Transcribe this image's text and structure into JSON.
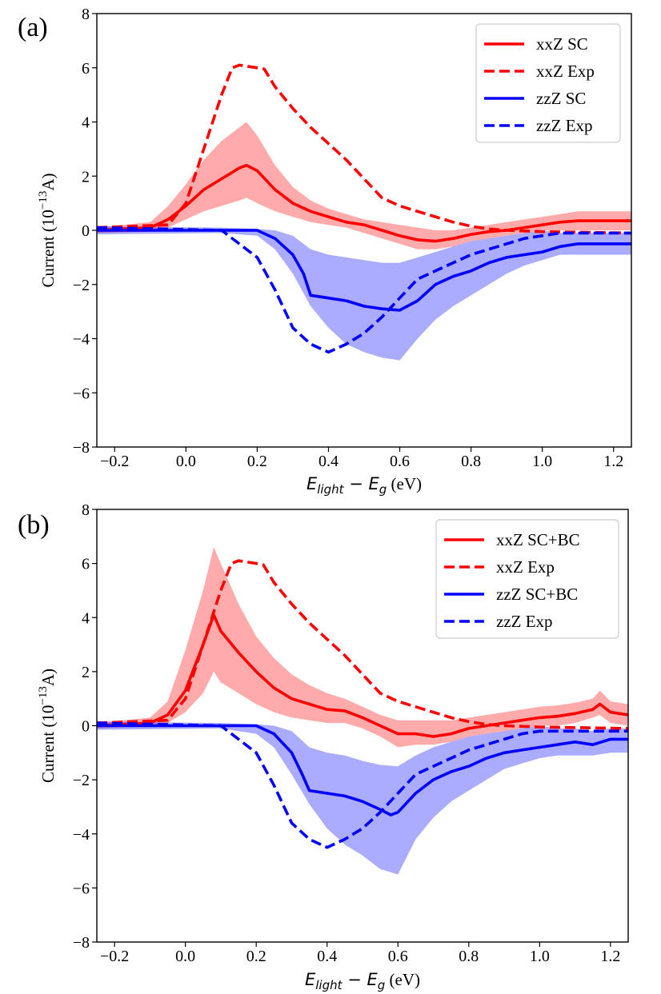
{
  "figure": {
    "xlabel_main": "E",
    "xlabel_sub1": "light",
    "xlabel_mid": " − E",
    "xlabel_sub2": "g",
    "xlabel_unit": " (eV)",
    "ylabel_prefix": "Current (10",
    "ylabel_exp": "−13",
    "ylabel_suffix": "A)"
  },
  "chart_data": [
    {
      "type": "line",
      "panel_label": "(a)",
      "xlim": [
        -0.25,
        1.25
      ],
      "ylim": [
        -8,
        8
      ],
      "xticks": [
        -0.2,
        0.0,
        0.2,
        0.4,
        0.6,
        0.8,
        1.0,
        1.2
      ],
      "yticks": [
        -8,
        -6,
        -4,
        -2,
        0,
        2,
        4,
        6,
        8
      ],
      "xtick_labels": [
        "−0.2",
        "0.0",
        "0.2",
        "0.4",
        "0.6",
        "0.8",
        "1.0",
        "1.2"
      ],
      "ytick_labels": [
        "−8",
        "−6",
        "−4",
        "−2",
        "0",
        "2",
        "4",
        "6",
        "8"
      ],
      "legend_position": "top-right",
      "series": [
        {
          "name": "xxZ SC",
          "color": "#ff0000",
          "dash": "solid",
          "x": [
            -0.25,
            -0.1,
            -0.05,
            0.0,
            0.05,
            0.1,
            0.15,
            0.17,
            0.2,
            0.25,
            0.3,
            0.35,
            0.4,
            0.45,
            0.5,
            0.55,
            0.6,
            0.65,
            0.7,
            0.75,
            0.8,
            0.85,
            0.9,
            0.95,
            1.0,
            1.05,
            1.1,
            1.25
          ],
          "y": [
            0.0,
            0.1,
            0.4,
            0.9,
            1.5,
            1.9,
            2.3,
            2.4,
            2.2,
            1.5,
            1.0,
            0.7,
            0.5,
            0.3,
            0.2,
            0.0,
            -0.2,
            -0.35,
            -0.4,
            -0.3,
            -0.15,
            -0.05,
            0.0,
            0.1,
            0.2,
            0.3,
            0.35,
            0.35
          ],
          "band_upper": [
            0.1,
            0.3,
            0.9,
            1.7,
            2.6,
            3.3,
            3.8,
            4.0,
            3.5,
            2.4,
            1.6,
            1.1,
            0.8,
            0.6,
            0.4,
            0.3,
            0.2,
            0.1,
            0.0,
            0.0,
            0.1,
            0.2,
            0.3,
            0.4,
            0.5,
            0.6,
            0.7,
            0.7
          ],
          "band_lower": [
            -0.1,
            -0.05,
            0.1,
            0.4,
            0.7,
            0.9,
            1.1,
            1.2,
            1.0,
            0.7,
            0.5,
            0.3,
            0.2,
            0.1,
            -0.1,
            -0.3,
            -0.5,
            -0.7,
            -0.7,
            -0.6,
            -0.4,
            -0.3,
            -0.2,
            -0.1,
            0.0,
            0.0,
            0.0,
            0.0
          ]
        },
        {
          "name": "xxZ Exp",
          "color": "#ff0000",
          "dash": "dashed",
          "x": [
            -0.25,
            -0.05,
            0.0,
            0.05,
            0.1,
            0.13,
            0.15,
            0.2,
            0.22,
            0.25,
            0.3,
            0.35,
            0.4,
            0.45,
            0.5,
            0.55,
            0.6,
            0.65,
            0.7,
            0.75,
            0.8,
            0.85,
            0.9,
            1.0,
            1.25
          ],
          "y": [
            0.1,
            0.2,
            1.0,
            3.0,
            5.0,
            6.0,
            6.1,
            6.0,
            5.95,
            5.3,
            4.5,
            3.8,
            3.2,
            2.6,
            1.9,
            1.2,
            0.9,
            0.7,
            0.5,
            0.3,
            0.15,
            0.05,
            0.0,
            -0.05,
            -0.1
          ]
        },
        {
          "name": "zzZ SC",
          "color": "#0000ff",
          "dash": "solid",
          "x": [
            -0.25,
            0.1,
            0.2,
            0.25,
            0.3,
            0.33,
            0.35,
            0.4,
            0.45,
            0.5,
            0.55,
            0.6,
            0.65,
            0.7,
            0.75,
            0.8,
            0.85,
            0.9,
            0.95,
            1.0,
            1.05,
            1.1,
            1.25
          ],
          "y": [
            0.0,
            0.0,
            0.0,
            -0.3,
            -0.9,
            -1.6,
            -2.4,
            -2.5,
            -2.6,
            -2.8,
            -2.9,
            -2.95,
            -2.6,
            -2.0,
            -1.7,
            -1.5,
            -1.2,
            -1.0,
            -0.9,
            -0.8,
            -0.6,
            -0.5,
            -0.5
          ]
        },
        {
          "name": "zzZ Exp",
          "color": "#0000ff",
          "dash": "dashed",
          "x": [
            -0.25,
            0.1,
            0.15,
            0.2,
            0.25,
            0.3,
            0.35,
            0.4,
            0.45,
            0.5,
            0.55,
            0.6,
            0.65,
            0.7,
            0.75,
            0.8,
            0.85,
            0.9,
            0.95,
            1.0,
            1.05,
            1.25
          ],
          "y": [
            0.1,
            0.0,
            -0.5,
            -1.0,
            -2.2,
            -3.6,
            -4.2,
            -4.5,
            -4.2,
            -3.8,
            -3.2,
            -2.5,
            -1.8,
            -1.5,
            -1.2,
            -0.9,
            -0.7,
            -0.5,
            -0.3,
            -0.2,
            -0.1,
            -0.1
          ]
        },
        {
          "name": "zzZ SC band",
          "color": "#0000ff",
          "band_only": true,
          "x": [
            -0.25,
            0.1,
            0.2,
            0.25,
            0.3,
            0.35,
            0.4,
            0.45,
            0.5,
            0.55,
            0.6,
            0.65,
            0.7,
            0.75,
            0.8,
            0.85,
            0.9,
            0.95,
            1.0,
            1.05,
            1.1,
            1.25
          ],
          "band_upper": [
            0.15,
            0.1,
            0.05,
            0.0,
            -0.2,
            -0.7,
            -0.9,
            -1.0,
            -1.1,
            -1.2,
            -1.2,
            -1.0,
            -0.8,
            -0.6,
            -0.4,
            -0.3,
            -0.2,
            -0.1,
            0.0,
            -0.1,
            -0.1,
            -0.1
          ],
          "band_lower": [
            -0.15,
            -0.1,
            -0.2,
            -0.7,
            -1.6,
            -2.8,
            -3.6,
            -4.2,
            -4.5,
            -4.7,
            -4.8,
            -4.0,
            -3.3,
            -2.8,
            -2.4,
            -2.0,
            -1.6,
            -1.3,
            -1.1,
            -0.9,
            -0.9,
            -0.9
          ]
        }
      ]
    },
    {
      "type": "line",
      "panel_label": "(b)",
      "xlim": [
        -0.25,
        1.25
      ],
      "ylim": [
        -8,
        8
      ],
      "xticks": [
        -0.2,
        0.0,
        0.2,
        0.4,
        0.6,
        0.8,
        1.0,
        1.2
      ],
      "yticks": [
        -8,
        -6,
        -4,
        -2,
        0,
        2,
        4,
        6,
        8
      ],
      "xtick_labels": [
        "−0.2",
        "0.0",
        "0.2",
        "0.4",
        "0.6",
        "0.8",
        "1.0",
        "1.2"
      ],
      "ytick_labels": [
        "−8",
        "−6",
        "−4",
        "−2",
        "0",
        "2",
        "4",
        "6",
        "8"
      ],
      "legend_position": "top-right",
      "series": [
        {
          "name": "xxZ SC+BC",
          "color": "#ff0000",
          "dash": "solid",
          "x": [
            -0.25,
            -0.1,
            -0.05,
            0.0,
            0.05,
            0.08,
            0.1,
            0.15,
            0.2,
            0.25,
            0.3,
            0.35,
            0.4,
            0.45,
            0.5,
            0.55,
            0.6,
            0.65,
            0.7,
            0.75,
            0.8,
            0.85,
            0.9,
            0.95,
            1.0,
            1.05,
            1.1,
            1.15,
            1.17,
            1.2,
            1.25
          ],
          "y": [
            0.0,
            0.1,
            0.4,
            1.3,
            3.0,
            4.1,
            3.5,
            2.7,
            2.0,
            1.4,
            1.0,
            0.8,
            0.6,
            0.55,
            0.3,
            0.0,
            -0.3,
            -0.3,
            -0.4,
            -0.3,
            -0.1,
            0.0,
            0.1,
            0.2,
            0.3,
            0.35,
            0.45,
            0.6,
            0.8,
            0.5,
            0.4
          ]
        },
        {
          "name": "xxZ Exp",
          "color": "#ff0000",
          "dash": "dashed",
          "x": [
            -0.25,
            -0.05,
            0.0,
            0.05,
            0.1,
            0.13,
            0.15,
            0.2,
            0.22,
            0.25,
            0.3,
            0.35,
            0.4,
            0.45,
            0.5,
            0.55,
            0.6,
            0.65,
            0.7,
            0.75,
            0.8,
            0.85,
            0.9,
            1.0,
            1.25
          ],
          "y": [
            0.1,
            0.2,
            1.0,
            3.0,
            5.0,
            6.0,
            6.1,
            6.0,
            5.95,
            5.3,
            4.5,
            3.8,
            3.2,
            2.6,
            1.9,
            1.2,
            0.9,
            0.7,
            0.5,
            0.3,
            0.15,
            0.05,
            0.0,
            -0.05,
            -0.1
          ]
        },
        {
          "name": "zzZ SC+BC",
          "color": "#0000ff",
          "dash": "solid",
          "x": [
            -0.25,
            0.1,
            0.2,
            0.25,
            0.3,
            0.33,
            0.35,
            0.4,
            0.45,
            0.5,
            0.55,
            0.58,
            0.6,
            0.65,
            0.7,
            0.75,
            0.8,
            0.85,
            0.9,
            0.95,
            1.0,
            1.05,
            1.1,
            1.15,
            1.2,
            1.25
          ],
          "y": [
            0.0,
            0.0,
            0.0,
            -0.3,
            -1.0,
            -1.8,
            -2.4,
            -2.5,
            -2.6,
            -2.8,
            -3.1,
            -3.3,
            -3.2,
            -2.5,
            -2.0,
            -1.7,
            -1.5,
            -1.2,
            -1.0,
            -0.9,
            -0.8,
            -0.7,
            -0.6,
            -0.7,
            -0.5,
            -0.5
          ]
        },
        {
          "name": "zzZ Exp",
          "color": "#0000ff",
          "dash": "dashed",
          "x": [
            -0.25,
            0.1,
            0.15,
            0.2,
            0.25,
            0.3,
            0.35,
            0.4,
            0.45,
            0.5,
            0.55,
            0.6,
            0.65,
            0.7,
            0.75,
            0.8,
            0.85,
            0.9,
            0.95,
            1.0,
            1.05,
            1.25
          ],
          "y": [
            0.1,
            0.0,
            -0.5,
            -1.0,
            -2.2,
            -3.6,
            -4.2,
            -4.5,
            -4.2,
            -3.8,
            -3.2,
            -2.5,
            -1.8,
            -1.5,
            -1.2,
            -0.9,
            -0.7,
            -0.5,
            -0.3,
            -0.2,
            -0.2,
            -0.2
          ]
        },
        {
          "name": "xxZ SC+BC band",
          "color": "#ff0000",
          "band_only": true,
          "x": [
            -0.25,
            -0.1,
            -0.05,
            0.0,
            0.05,
            0.08,
            0.1,
            0.15,
            0.2,
            0.25,
            0.3,
            0.35,
            0.4,
            0.45,
            0.5,
            0.55,
            0.6,
            0.65,
            0.7,
            0.75,
            0.8,
            0.85,
            0.9,
            0.95,
            1.0,
            1.05,
            1.1,
            1.15,
            1.17,
            1.2,
            1.25
          ],
          "band_upper": [
            0.1,
            0.3,
            0.9,
            2.8,
            5.0,
            6.6,
            6.0,
            4.5,
            3.3,
            2.5,
            1.9,
            1.5,
            1.2,
            1.0,
            0.7,
            0.4,
            0.2,
            0.2,
            0.2,
            0.2,
            0.3,
            0.4,
            0.5,
            0.6,
            0.7,
            0.75,
            0.85,
            1.0,
            1.3,
            0.9,
            0.8
          ],
          "band_lower": [
            -0.1,
            0.0,
            0.1,
            0.5,
            1.2,
            2.0,
            1.6,
            1.2,
            0.8,
            0.5,
            0.3,
            0.2,
            0.1,
            0.1,
            -0.1,
            -0.4,
            -0.8,
            -0.7,
            -0.7,
            -0.6,
            -0.4,
            -0.3,
            -0.2,
            -0.1,
            0.0,
            0.0,
            0.1,
            0.3,
            0.4,
            0.1,
            0.0
          ]
        },
        {
          "name": "zzZ SC+BC band",
          "color": "#0000ff",
          "band_only": true,
          "x": [
            -0.25,
            0.1,
            0.2,
            0.25,
            0.3,
            0.35,
            0.4,
            0.45,
            0.5,
            0.55,
            0.6,
            0.65,
            0.7,
            0.75,
            0.8,
            0.85,
            0.9,
            0.95,
            1.0,
            1.05,
            1.1,
            1.15,
            1.2,
            1.25
          ],
          "band_upper": [
            0.15,
            0.1,
            0.05,
            0.0,
            -0.2,
            -0.8,
            -1.0,
            -1.1,
            -1.3,
            -1.45,
            -1.5,
            -1.1,
            -0.8,
            -0.6,
            -0.4,
            -0.3,
            -0.2,
            -0.1,
            0.0,
            -0.1,
            -0.1,
            -0.2,
            -0.1,
            -0.1
          ],
          "band_lower": [
            -0.15,
            -0.1,
            -0.3,
            -0.8,
            -1.8,
            -2.9,
            -3.8,
            -4.4,
            -4.8,
            -5.3,
            -5.5,
            -4.2,
            -3.4,
            -2.8,
            -2.4,
            -2.0,
            -1.6,
            -1.4,
            -1.2,
            -1.1,
            -1.1,
            -1.1,
            -1.0,
            -1.0
          ]
        }
      ]
    }
  ]
}
